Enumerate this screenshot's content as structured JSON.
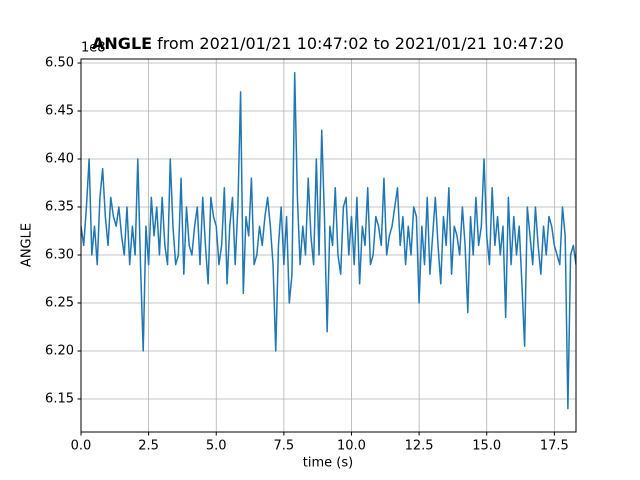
{
  "chart_data": {
    "type": "line",
    "title_bold": "ANGLE",
    "title": "from 2021/01/21 10:47:02 to 2021/01/21 10:47:20",
    "y_offset_label": "1e8",
    "xlabel": "time (s)",
    "ylabel": "ANGLE",
    "color": "#1f77b4",
    "grid": true,
    "xlim": [
      0,
      18.3
    ],
    "ylim": [
      6.1156,
      6.5042
    ],
    "xticks": [
      {
        "value": 0,
        "label": "0.0"
      },
      2.5,
      {
        "value": 5,
        "label": "5.0"
      },
      7.5,
      {
        "value": 10,
        "label": "10.0"
      },
      12.5,
      {
        "value": 15,
        "label": "15.0"
      },
      17.5
    ],
    "yticks": [
      6.15,
      {
        "value": 6.2,
        "label": "6.20"
      },
      6.25,
      {
        "value": 6.3,
        "label": "6.30"
      },
      6.35,
      {
        "value": 6.4,
        "label": "6.40"
      },
      6.45,
      {
        "value": 6.5,
        "label": "6.50"
      }
    ],
    "x": [
      0,
      0.1,
      0.2,
      0.3,
      0.4,
      0.5,
      0.6,
      0.7,
      0.8,
      0.9,
      1,
      1.1,
      1.2,
      1.3,
      1.4,
      1.5,
      1.6,
      1.7,
      1.8,
      1.9,
      2,
      2.1,
      2.2,
      2.3,
      2.4,
      2.5,
      2.6,
      2.7,
      2.8,
      2.9,
      3,
      3.1,
      3.2,
      3.3,
      3.4,
      3.5,
      3.6,
      3.7,
      3.8,
      3.9,
      4,
      4.1,
      4.2,
      4.3,
      4.4,
      4.5,
      4.6,
      4.7,
      4.8,
      4.9,
      5,
      5.1,
      5.2,
      5.3,
      5.4,
      5.5,
      5.6,
      5.7,
      5.8,
      5.9,
      6,
      6.1,
      6.2,
      6.3,
      6.4,
      6.5,
      6.6,
      6.7,
      6.8,
      6.9,
      7,
      7.1,
      7.2,
      7.3,
      7.4,
      7.5,
      7.6,
      7.7,
      7.8,
      7.9,
      8,
      8.1,
      8.2,
      8.3,
      8.4,
      8.5,
      8.6,
      8.7,
      8.8,
      8.9,
      9,
      9.1,
      9.2,
      9.3,
      9.4,
      9.5,
      9.6,
      9.7,
      9.8,
      9.9,
      10,
      10.1,
      10.2,
      10.3,
      10.4,
      10.5,
      10.6,
      10.7,
      10.8,
      10.9,
      11,
      11.1,
      11.2,
      11.3,
      11.4,
      11.5,
      11.6,
      11.7,
      11.8,
      11.9,
      12,
      12.1,
      12.2,
      12.3,
      12.4,
      12.5,
      12.6,
      12.7,
      12.8,
      12.9,
      13,
      13.1,
      13.2,
      13.3,
      13.4,
      13.5,
      13.6,
      13.7,
      13.8,
      13.9,
      14,
      14.1,
      14.2,
      14.3,
      14.4,
      14.5,
      14.6,
      14.7,
      14.8,
      14.9,
      15,
      15.1,
      15.2,
      15.3,
      15.4,
      15.5,
      15.6,
      15.7,
      15.8,
      15.9,
      16,
      16.1,
      16.2,
      16.3,
      16.4,
      16.5,
      16.6,
      16.7,
      16.8,
      16.9,
      17,
      17.1,
      17.2,
      17.3,
      17.4,
      17.5,
      17.6,
      17.7,
      17.8,
      17.9,
      18,
      18.1,
      18.2,
      18.3
    ],
    "values": [
      6.33,
      6.31,
      6.35,
      6.4,
      6.3,
      6.33,
      6.29,
      6.36,
      6.39,
      6.34,
      6.31,
      6.36,
      6.34,
      6.33,
      6.35,
      6.32,
      6.3,
      6.35,
      6.29,
      6.33,
      6.3,
      6.4,
      6.29,
      6.2,
      6.33,
      6.29,
      6.36,
      6.32,
      6.35,
      6.3,
      6.36,
      6.31,
      6.29,
      6.4,
      6.33,
      6.29,
      6.3,
      6.38,
      6.28,
      6.35,
      6.31,
      6.3,
      6.33,
      6.35,
      6.29,
      6.36,
      6.31,
      6.27,
      6.36,
      6.34,
      6.33,
      6.29,
      6.31,
      6.37,
      6.27,
      6.33,
      6.36,
      6.29,
      6.35,
      6.47,
      6.26,
      6.34,
      6.32,
      6.38,
      6.29,
      6.3,
      6.33,
      6.31,
      6.34,
      6.36,
      6.33,
      6.29,
      6.2,
      6.31,
      6.35,
      6.29,
      6.34,
      6.25,
      6.28,
      6.49,
      6.36,
      6.29,
      6.33,
      6.3,
      6.38,
      6.32,
      6.29,
      6.4,
      6.3,
      6.43,
      6.34,
      6.22,
      6.33,
      6.31,
      6.37,
      6.3,
      6.28,
      6.35,
      6.36,
      6.3,
      6.34,
      6.29,
      6.36,
      6.27,
      6.33,
      6.31,
      6.37,
      6.29,
      6.3,
      6.34,
      6.33,
      6.31,
      6.38,
      6.3,
      6.32,
      6.33,
      6.35,
      6.37,
      6.31,
      6.34,
      6.29,
      6.33,
      6.3,
      6.35,
      6.34,
      6.25,
      6.33,
      6.29,
      6.36,
      6.28,
      6.32,
      6.36,
      6.31,
      6.27,
      6.34,
      6.31,
      6.37,
      6.28,
      6.33,
      6.32,
      6.3,
      6.35,
      6.31,
      6.24,
      6.34,
      6.3,
      6.36,
      6.31,
      6.33,
      6.4,
      6.32,
      6.29,
      6.37,
      6.31,
      6.34,
      6.3,
      6.33,
      6.235,
      6.36,
      6.29,
      6.34,
      6.3,
      6.33,
      6.27,
      6.205,
      6.35,
      6.32,
      6.29,
      6.35,
      6.31,
      6.28,
      6.33,
      6.3,
      6.34,
      6.33,
      6.31,
      6.3,
      6.29,
      6.35,
      6.32,
      6.14,
      6.3,
      6.31,
      6.29
    ]
  }
}
